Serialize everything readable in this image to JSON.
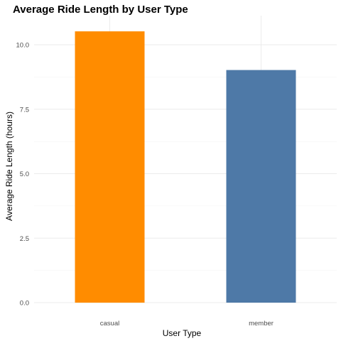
{
  "chart_data": {
    "type": "bar",
    "title": "Average Ride Length by User Type",
    "xlabel": "User Type",
    "ylabel": "Average Ride Length (hours)",
    "categories": [
      "casual",
      "member"
    ],
    "values": [
      10.52,
      9.02
    ],
    "colors": [
      "#ff8c00",
      "#4e79a7"
    ],
    "ylim": [
      0,
      10.5
    ],
    "yticks": [
      0,
      2.5,
      5,
      7.5,
      10
    ],
    "ytick_labels": [
      "0.0",
      "2.5",
      "5.0",
      "7.5",
      "10.0"
    ],
    "grid": true,
    "legend": "none"
  }
}
